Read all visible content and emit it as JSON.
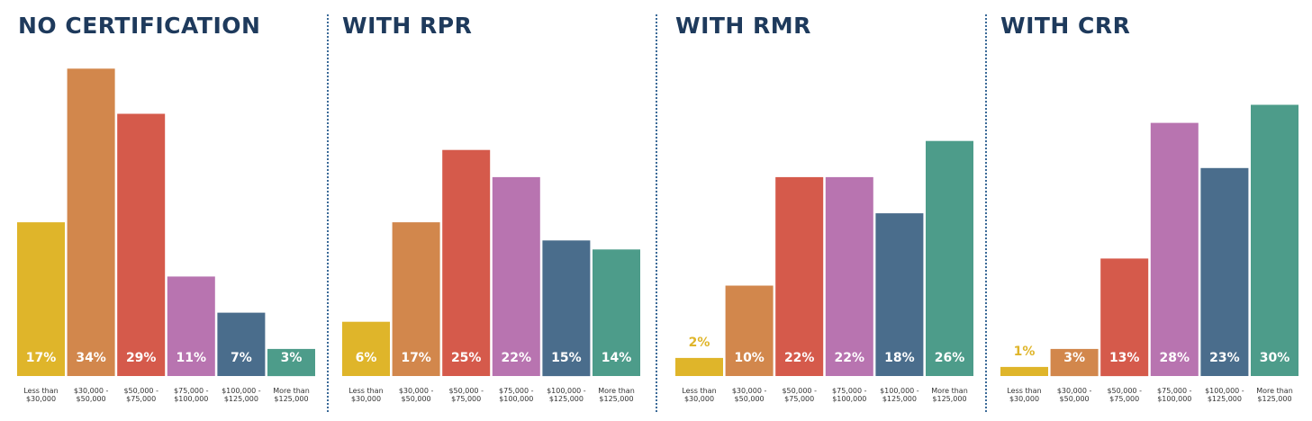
{
  "colors": {
    "title": "#1e3a5c",
    "divider": "#3b6a98",
    "categories": [
      "#dfb52a",
      "#d2874c",
      "#d55a4b",
      "#b874b0",
      "#4a6d8c",
      "#4d9c8a"
    ]
  },
  "chart_data": [
    {
      "type": "bar",
      "title": "NO CERTIFICATION",
      "categories": [
        "Less than $30,000",
        "$30,000 - $50,000",
        "$50,000 - $75,000",
        "$75,000 - $100,000",
        "$100,000 - $125,000",
        "More than $125,000"
      ],
      "category_lines": [
        [
          "Less than",
          "$30,000"
        ],
        [
          "$30,000 -",
          "$50,000"
        ],
        [
          "$50,000 -",
          "$75,000"
        ],
        [
          "$75,000 -",
          "$100,000"
        ],
        [
          "$100,000 -",
          "$125,000"
        ],
        [
          "More than",
          "$125,000"
        ]
      ],
      "values": [
        17,
        34,
        29,
        11,
        7,
        3
      ],
      "labels": [
        "17%",
        "34%",
        "29%",
        "11%",
        "7%",
        "3%"
      ],
      "ylim": [
        0,
        34
      ],
      "grid": false
    },
    {
      "type": "bar",
      "title": "WITH RPR",
      "categories": [
        "Less than $30,000",
        "$30,000 - $50,000",
        "$50,000 - $75,000",
        "$75,000 - $100,000",
        "$100,000 - $125,000",
        "More than $125,000"
      ],
      "category_lines": [
        [
          "Less than",
          "$30,000"
        ],
        [
          "$30,000 -",
          "$50,000"
        ],
        [
          "$50,000 -",
          "$75,000"
        ],
        [
          "$75,000 -",
          "$100,000"
        ],
        [
          "$100,000 -",
          "$125,000"
        ],
        [
          "More than",
          "$125,000"
        ]
      ],
      "values": [
        6,
        17,
        25,
        22,
        15,
        14
      ],
      "labels": [
        "6%",
        "17%",
        "25%",
        "22%",
        "15%",
        "14%"
      ],
      "ylim": [
        0,
        34
      ],
      "grid": false
    },
    {
      "type": "bar",
      "title": "WITH RMR",
      "categories": [
        "Less than $30,000",
        "$30,000 - $50,000",
        "$50,000 - $75,000",
        "$75,000 - $100,000",
        "$100,000 - $125,000",
        "More than $125,000"
      ],
      "category_lines": [
        [
          "Less than",
          "$30,000"
        ],
        [
          "$30,000 -",
          "$50,000"
        ],
        [
          "$50,000 -",
          "$75,000"
        ],
        [
          "$75,000 -",
          "$100,000"
        ],
        [
          "$100,000 -",
          "$125,000"
        ],
        [
          "More than",
          "$125,000"
        ]
      ],
      "values": [
        2,
        10,
        22,
        22,
        18,
        26
      ],
      "labels": [
        "2%",
        "10%",
        "22%",
        "22%",
        "18%",
        "26%"
      ],
      "ylim": [
        0,
        34
      ],
      "grid": false
    },
    {
      "type": "bar",
      "title": "WITH CRR",
      "categories": [
        "Less than $30,000",
        "$30,000 - $50,000",
        "$50,000 - $75,000",
        "$75,000 - $100,000",
        "$100,000 - $125,000",
        "More than $125,000"
      ],
      "category_lines": [
        [
          "Less than",
          "$30,000"
        ],
        [
          "$30,000 -",
          "$50,000"
        ],
        [
          "$50,000 -",
          "$75,000"
        ],
        [
          "$75,000 -",
          "$100,000"
        ],
        [
          "$100,000 -",
          "$125,000"
        ],
        [
          "More than",
          "$125,000"
        ]
      ],
      "values": [
        1,
        3,
        13,
        28,
        23,
        30
      ],
      "labels": [
        "1%",
        "3%",
        "13%",
        "28%",
        "23%",
        "30%"
      ],
      "ylim": [
        0,
        34
      ],
      "grid": false
    }
  ]
}
